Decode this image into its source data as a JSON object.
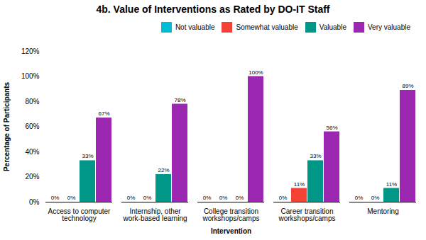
{
  "chart_data": {
    "type": "bar",
    "title": "4b. Value of Interventions as Rated by DO-IT Staff",
    "xlabel": "Intervention",
    "ylabel": "Percentage of Participants",
    "categories": [
      "Access to computer\ntechnology",
      "Internship, other\nwork-based learning",
      "College transition\nworkshops/camps",
      "Career transition\nworkshops/camps",
      "Mentoring"
    ],
    "series": [
      {
        "name": "Not valuable",
        "color": "#00bcd4",
        "values": [
          0,
          0,
          0,
          0,
          0
        ],
        "value_labels": [
          "0%",
          "0%",
          "0%",
          "0%",
          "0%"
        ]
      },
      {
        "name": "Somewhat valuable",
        "color": "#f44336",
        "values": [
          0,
          0,
          0,
          11,
          0
        ],
        "value_labels": [
          "0%",
          "0%",
          "0%",
          "11%",
          "0%"
        ]
      },
      {
        "name": "Valuable",
        "color": "#009688",
        "values": [
          33,
          22,
          0,
          33,
          11
        ],
        "value_labels": [
          "33%",
          "22%",
          "0%",
          "33%",
          "11%"
        ]
      },
      {
        "name": "Very valuable",
        "color": "#9c27b0",
        "values": [
          67,
          78,
          100,
          56,
          89
        ],
        "value_labels": [
          "67%",
          "78%",
          "100%",
          "56%",
          "89%"
        ]
      }
    ],
    "ylim": [
      0,
      120
    ],
    "yticks": [
      {
        "value": 0,
        "label": "0%"
      },
      {
        "value": 20,
        "label": "20%"
      },
      {
        "value": 40,
        "label": "40%"
      },
      {
        "value": 60,
        "label": "60%"
      },
      {
        "value": 80,
        "label": "80%"
      },
      {
        "value": 100,
        "label": "100%"
      },
      {
        "value": 120,
        "label": "120%"
      }
    ],
    "grid": false,
    "legend": "upper right",
    "data_labels": true
  }
}
